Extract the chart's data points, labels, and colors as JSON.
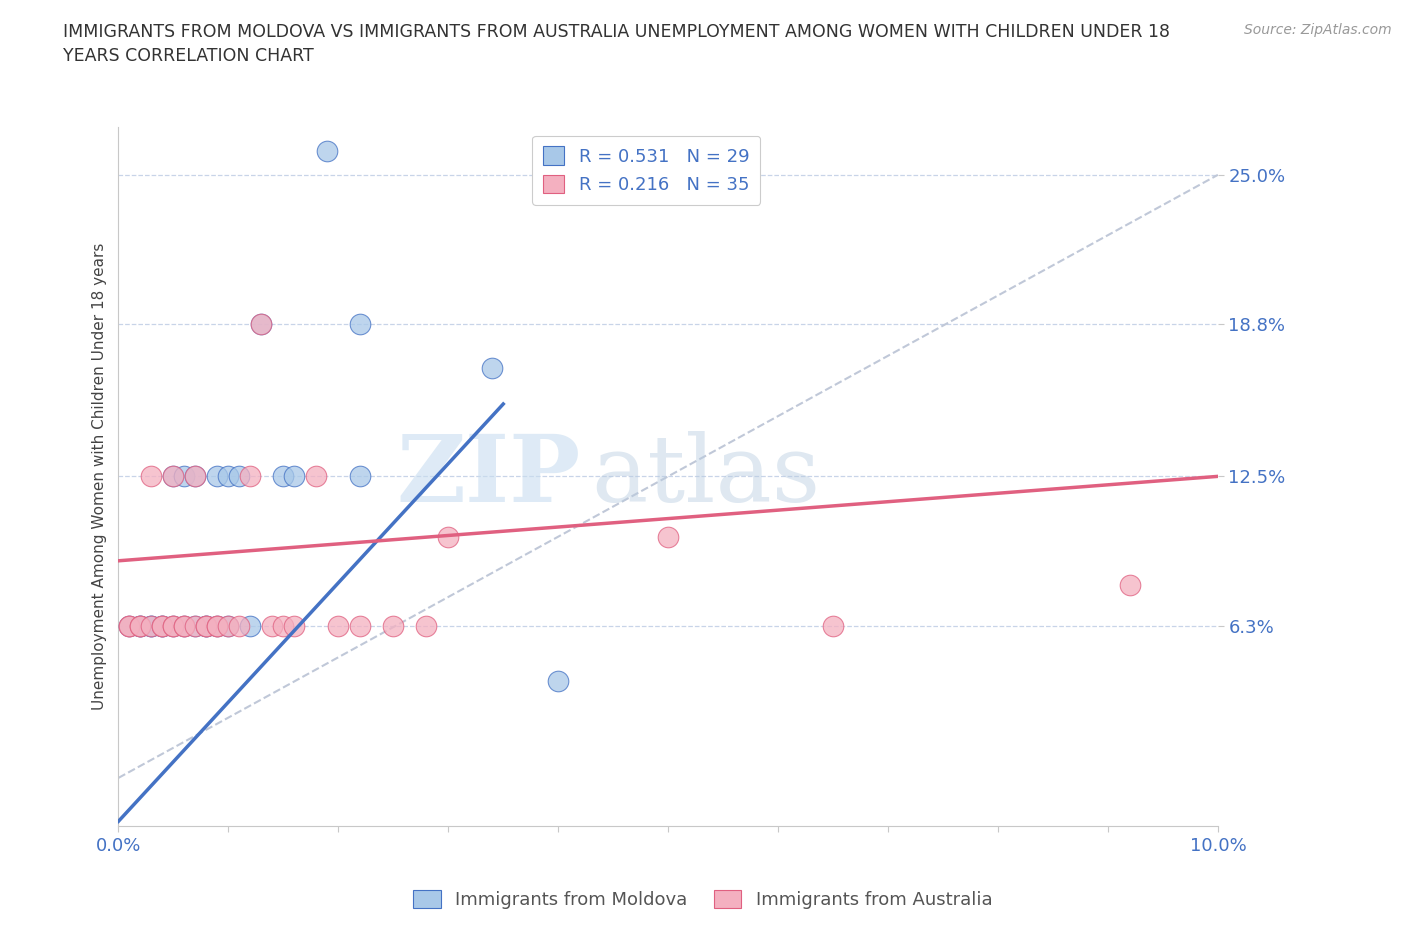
{
  "title": "IMMIGRANTS FROM MOLDOVA VS IMMIGRANTS FROM AUSTRALIA UNEMPLOYMENT AMONG WOMEN WITH CHILDREN UNDER 18\nYEARS CORRELATION CHART",
  "source": "Source: ZipAtlas.com",
  "ylabel": "Unemployment Among Women with Children Under 18 years",
  "xlim": [
    0.0,
    0.1
  ],
  "ylim": [
    -0.02,
    0.27
  ],
  "xticks": [
    0.0,
    0.01,
    0.02,
    0.03,
    0.04,
    0.05,
    0.06,
    0.07,
    0.08,
    0.09,
    0.1
  ],
  "xticklabels": [
    "0.0%",
    "",
    "",
    "",
    "",
    "",
    "",
    "",
    "",
    "",
    "10.0%"
  ],
  "ytick_values": [
    0.063,
    0.125,
    0.188,
    0.25
  ],
  "ytick_labels": [
    "6.3%",
    "12.5%",
    "18.8%",
    "25.0%"
  ],
  "moldova_color": "#a8c8e8",
  "australia_color": "#f4b0c0",
  "moldova_line_color": "#4472c4",
  "australia_line_color": "#e06080",
  "ref_line_color": "#c0c8d8",
  "legend_R_moldova": "R = 0.531",
  "legend_N_moldova": "N = 29",
  "legend_R_australia": "R = 0.216",
  "legend_N_australia": "N = 35",
  "watermark_zip": "ZIP",
  "watermark_atlas": "atlas",
  "moldova_scatter_x": [
    0.001,
    0.002,
    0.002,
    0.003,
    0.003,
    0.004,
    0.004,
    0.005,
    0.005,
    0.006,
    0.006,
    0.007,
    0.007,
    0.008,
    0.008,
    0.009,
    0.009,
    0.01,
    0.01,
    0.011,
    0.012,
    0.013,
    0.015,
    0.016,
    0.019,
    0.022,
    0.022,
    0.034,
    0.04
  ],
  "moldova_scatter_y": [
    0.063,
    0.063,
    0.063,
    0.063,
    0.063,
    0.063,
    0.063,
    0.063,
    0.125,
    0.063,
    0.125,
    0.063,
    0.125,
    0.063,
    0.063,
    0.063,
    0.125,
    0.125,
    0.063,
    0.125,
    0.063,
    0.188,
    0.125,
    0.125,
    0.26,
    0.125,
    0.188,
    0.17,
    0.04
  ],
  "australia_scatter_x": [
    0.001,
    0.001,
    0.002,
    0.002,
    0.003,
    0.003,
    0.004,
    0.004,
    0.005,
    0.005,
    0.005,
    0.006,
    0.006,
    0.007,
    0.007,
    0.008,
    0.008,
    0.009,
    0.009,
    0.01,
    0.011,
    0.012,
    0.013,
    0.014,
    0.015,
    0.016,
    0.018,
    0.02,
    0.022,
    0.025,
    0.028,
    0.03,
    0.05,
    0.065,
    0.092
  ],
  "australia_scatter_y": [
    0.063,
    0.063,
    0.063,
    0.063,
    0.063,
    0.125,
    0.063,
    0.063,
    0.063,
    0.063,
    0.125,
    0.063,
    0.063,
    0.063,
    0.125,
    0.063,
    0.063,
    0.063,
    0.063,
    0.063,
    0.063,
    0.125,
    0.188,
    0.063,
    0.063,
    0.063,
    0.125,
    0.063,
    0.063,
    0.063,
    0.063,
    0.1,
    0.1,
    0.063,
    0.08
  ],
  "moldova_line_x0": 0.0,
  "moldova_line_y0": -0.018,
  "moldova_line_x1": 0.035,
  "moldova_line_y1": 0.155,
  "australia_line_x0": 0.0,
  "australia_line_y0": 0.09,
  "australia_line_x1": 0.1,
  "australia_line_y1": 0.125,
  "ref_line_x0": 0.0,
  "ref_line_y0": 0.0,
  "ref_line_x1": 0.1,
  "ref_line_y1": 0.25,
  "background_color": "#ffffff",
  "grid_color": "#c8d4e8",
  "spine_color": "#c8c8c8"
}
